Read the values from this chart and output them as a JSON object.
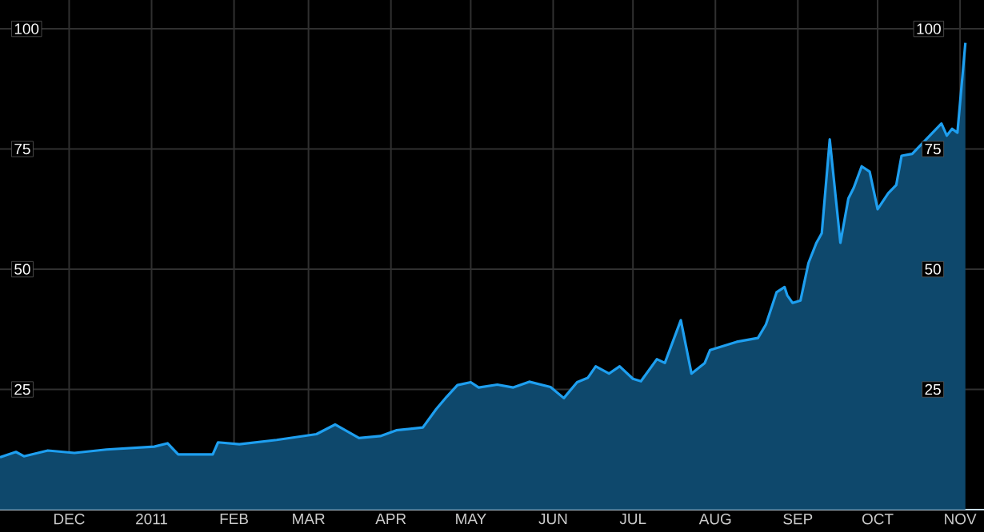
{
  "chart_data": {
    "type": "area",
    "grid": true,
    "xlim": [
      "2010-11-05",
      "2011-11-10"
    ],
    "xticks": [
      {
        "value": "2010-12-01",
        "label": "DEC"
      },
      {
        "value": "2011-01-01",
        "label": "2011"
      },
      {
        "value": "2011-02-01",
        "label": "FEB"
      },
      {
        "value": "2011-03-01",
        "label": "MAR"
      },
      {
        "value": "2011-04-01",
        "label": "APR"
      },
      {
        "value": "2011-05-01",
        "label": "MAY"
      },
      {
        "value": "2011-06-01",
        "label": "JUN"
      },
      {
        "value": "2011-07-01",
        "label": "JUL"
      },
      {
        "value": "2011-08-01",
        "label": "AUG"
      },
      {
        "value": "2011-09-01",
        "label": "SEP"
      },
      {
        "value": "2011-10-01",
        "label": "OCT"
      },
      {
        "value": "2011-11-01",
        "label": "NOV"
      }
    ],
    "ylim": [
      0,
      106
    ],
    "yticks": [
      25,
      50,
      75,
      100
    ],
    "y2lim": [
      0,
      106
    ],
    "y2ticks": [
      25,
      50,
      75,
      100
    ],
    "x": [
      "2010-11-05",
      "2010-11-11",
      "2010-11-14",
      "2010-11-23",
      "2010-12-03",
      "2010-12-15",
      "2011-01-02",
      "2011-01-07",
      "2011-01-11",
      "2011-01-24",
      "2011-01-26",
      "2011-02-03",
      "2011-02-17",
      "2011-03-04",
      "2011-03-11",
      "2011-03-20",
      "2011-03-28",
      "2011-04-03",
      "2011-04-13",
      "2011-04-18",
      "2011-04-22",
      "2011-04-26",
      "2011-05-01",
      "2011-05-04",
      "2011-05-11",
      "2011-05-17",
      "2011-05-23",
      "2011-05-31",
      "2011-06-05",
      "2011-06-10",
      "2011-06-14",
      "2011-06-17",
      "2011-06-22",
      "2011-06-26",
      "2011-07-01",
      "2011-07-04",
      "2011-07-10",
      "2011-07-13",
      "2011-07-19",
      "2011-07-23",
      "2011-07-28",
      "2011-07-30",
      "2011-08-09",
      "2011-08-17",
      "2011-08-20",
      "2011-08-24",
      "2011-08-27",
      "2011-08-28",
      "2011-08-30",
      "2011-09-02",
      "2011-09-05",
      "2011-09-08",
      "2011-09-10",
      "2011-09-13",
      "2011-09-17",
      "2011-09-20",
      "2011-09-22",
      "2011-09-25",
      "2011-09-28",
      "2011-10-01",
      "2011-10-05",
      "2011-10-08",
      "2011-10-10",
      "2011-10-14",
      "2011-10-25",
      "2011-10-27",
      "2011-10-29",
      "2011-10-31",
      "2011-11-03"
    ],
    "series": [
      {
        "color": "#1e9ff0",
        "values": [
          10.9,
          12.0,
          11.1,
          12.3,
          11.8,
          12.5,
          13.1,
          13.8,
          11.5,
          11.5,
          14.0,
          13.6,
          14.5,
          15.7,
          17.7,
          14.9,
          15.3,
          16.5,
          17.1,
          20.9,
          23.5,
          25.9,
          26.5,
          25.4,
          26.0,
          25.4,
          26.6,
          25.5,
          23.2,
          26.5,
          27.4,
          29.8,
          28.3,
          29.8,
          27.2,
          26.7,
          31.3,
          30.5,
          39.4,
          28.3,
          30.5,
          33.2,
          34.9,
          35.7,
          38.5,
          45.2,
          46.3,
          44.6,
          43.0,
          43.5,
          51.3,
          55.5,
          57.5,
          77.0,
          55.5,
          64.7,
          66.9,
          71.4,
          70.3,
          62.5,
          65.8,
          67.5,
          73.6,
          74.0,
          80.3,
          77.8,
          79.2,
          78.4,
          97.1
        ]
      }
    ]
  }
}
